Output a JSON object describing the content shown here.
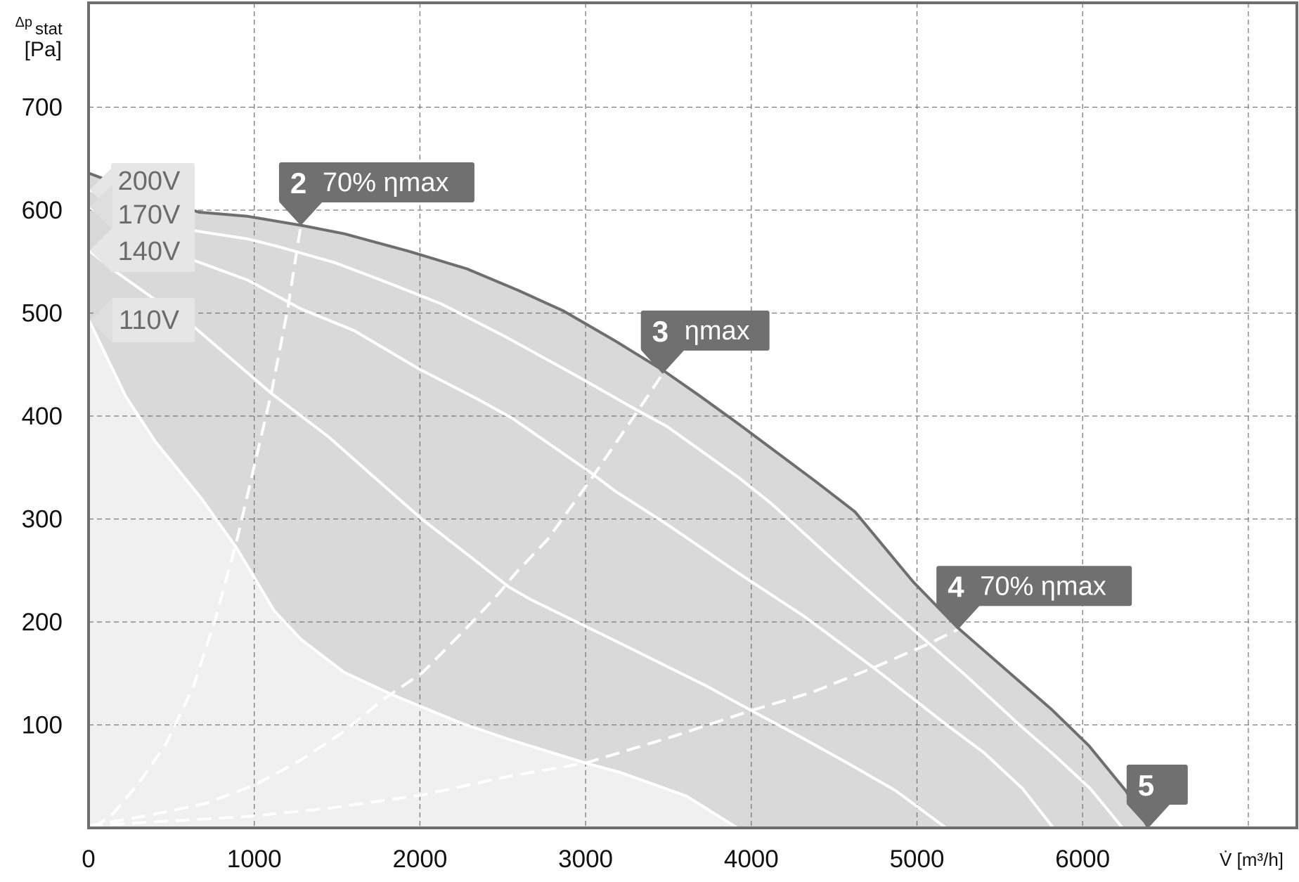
{
  "chart_data": {
    "type": "line",
    "title": "",
    "xlabel": "V̇ [m³/h]",
    "ylabel": {
      "symbol": "Δp",
      "subscript": "stat",
      "unit": "[Pa]"
    },
    "xlim": [
      0,
      7300
    ],
    "ylim": [
      0,
      800
    ],
    "grid": true,
    "x_ticks": [
      0,
      1000,
      2000,
      3000,
      4000,
      5000,
      6000
    ],
    "x_tick_labels": [
      "0",
      "1000",
      "2000",
      "3000",
      "4000",
      "5000",
      "6000"
    ],
    "y_ticks": [
      100,
      200,
      300,
      400,
      500,
      600,
      700
    ],
    "y_tick_labels": [
      "100",
      "200",
      "300",
      "400",
      "500",
      "600",
      "700"
    ],
    "colors": {
      "envelope": "#6e6e6e",
      "operating_area": "#d9d9d9",
      "low_area": "#f0f0f0",
      "curves": "#ffffff",
      "callout": "#707070",
      "voltage_tag": "#e6e6e6"
    },
    "envelope": [
      [
        0,
        636
      ],
      [
        165,
        626
      ],
      [
        665,
        598
      ],
      [
        961,
        594
      ],
      [
        1292,
        585
      ],
      [
        1545,
        577
      ],
      [
        1934,
        560
      ],
      [
        2284,
        543
      ],
      [
        2595,
        522
      ],
      [
        2868,
        502
      ],
      [
        3179,
        473
      ],
      [
        3471,
        444
      ],
      [
        3685,
        420
      ],
      [
        3926,
        392
      ],
      [
        4393,
        336
      ],
      [
        4626,
        307
      ],
      [
        4977,
        239
      ],
      [
        5249,
        194
      ],
      [
        5813,
        115
      ],
      [
        6037,
        80
      ],
      [
        6261,
        36
      ],
      [
        6397,
        0
      ]
    ],
    "series": [
      {
        "name": "200V",
        "points": [
          [
            0,
            620
          ],
          [
            640,
            580
          ],
          [
            961,
            572
          ],
          [
            1136,
            565
          ],
          [
            1486,
            549
          ],
          [
            1798,
            530
          ],
          [
            2128,
            509
          ],
          [
            2517,
            477
          ],
          [
            2946,
            439
          ],
          [
            3296,
            407
          ],
          [
            3490,
            390
          ],
          [
            3926,
            340
          ],
          [
            4121,
            315
          ],
          [
            4510,
            258
          ],
          [
            4938,
            198
          ],
          [
            5288,
            149
          ],
          [
            5619,
            100
          ],
          [
            5813,
            73
          ],
          [
            6047,
            38
          ],
          [
            6241,
            0
          ]
        ]
      },
      {
        "name": "170V",
        "points": [
          [
            0,
            603
          ],
          [
            640,
            551
          ],
          [
            961,
            532
          ],
          [
            1283,
            504
          ],
          [
            1603,
            483
          ],
          [
            1992,
            446
          ],
          [
            2342,
            417
          ],
          [
            2556,
            398
          ],
          [
            3023,
            346
          ],
          [
            3179,
            327
          ],
          [
            3490,
            295
          ],
          [
            3926,
            247
          ],
          [
            4315,
            206
          ],
          [
            4743,
            155
          ],
          [
            5171,
            101
          ],
          [
            5405,
            73
          ],
          [
            5638,
            38
          ],
          [
            5823,
            0
          ]
        ]
      },
      {
        "name": "140V",
        "points": [
          [
            0,
            561
          ],
          [
            175,
            539
          ],
          [
            648,
            485
          ],
          [
            1104,
            422
          ],
          [
            1447,
            380
          ],
          [
            1700,
            344
          ],
          [
            2011,
            300
          ],
          [
            2323,
            261
          ],
          [
            2537,
            234
          ],
          [
            2667,
            222
          ],
          [
            3251,
            176
          ],
          [
            3727,
            138
          ],
          [
            4000,
            114
          ],
          [
            4267,
            91
          ],
          [
            4570,
            64
          ],
          [
            4873,
            36
          ],
          [
            5175,
            0
          ]
        ]
      },
      {
        "name": "110V",
        "points": [
          [
            0,
            494
          ],
          [
            225,
            419
          ],
          [
            404,
            375
          ],
          [
            681,
            320
          ],
          [
            893,
            272
          ],
          [
            1120,
            211
          ],
          [
            1283,
            183
          ],
          [
            1544,
            151
          ],
          [
            1837,
            129
          ],
          [
            2261,
            101
          ],
          [
            2537,
            86
          ],
          [
            3000,
            63
          ],
          [
            3208,
            54
          ],
          [
            3608,
            31
          ],
          [
            3915,
            0
          ]
        ]
      }
    ],
    "voltage_labels": [
      {
        "text": "200V",
        "pressure": 620
      },
      {
        "text": "170V",
        "pressure": 603
      },
      {
        "text": "140V",
        "pressure": 561
      },
      {
        "text": "110V",
        "pressure": 493
      }
    ],
    "system_lines": [
      {
        "id": "2",
        "points": [
          [
            30,
            0
          ],
          [
            143,
            13
          ],
          [
            306,
            44
          ],
          [
            469,
            82
          ],
          [
            632,
            137
          ],
          [
            762,
            201
          ],
          [
            893,
            278
          ],
          [
            1007,
            356
          ],
          [
            1104,
            423
          ],
          [
            1202,
            504
          ],
          [
            1281,
            585
          ]
        ]
      },
      {
        "id": "3",
        "points": [
          [
            0,
            2
          ],
          [
            388,
            13
          ],
          [
            713,
            24
          ],
          [
            1007,
            42
          ],
          [
            1283,
            66
          ],
          [
            1528,
            92
          ],
          [
            1772,
            124
          ],
          [
            2016,
            151
          ],
          [
            2281,
            194
          ],
          [
            2472,
            227
          ],
          [
            2581,
            248
          ],
          [
            2770,
            280
          ],
          [
            3043,
            341
          ],
          [
            3315,
            405
          ],
          [
            3465,
            441
          ]
        ]
      },
      {
        "id": "4",
        "points": [
          [
            0,
            2
          ],
          [
            306,
            5
          ],
          [
            958,
            11
          ],
          [
            1446,
            19
          ],
          [
            2016,
            32
          ],
          [
            2534,
            50
          ],
          [
            3000,
            63
          ],
          [
            3532,
            89
          ],
          [
            4000,
            114
          ],
          [
            4373,
            132
          ],
          [
            4743,
            156
          ],
          [
            5074,
            179
          ],
          [
            5249,
            193
          ]
        ]
      }
    ],
    "callouts": [
      {
        "number": "2",
        "text": "70% ηmax",
        "at": [
          1281,
          585
        ]
      },
      {
        "number": "3",
        "text": "ηmax",
        "at": [
          3465,
          441
        ]
      },
      {
        "number": "4",
        "text": "70% ηmax",
        "at": [
          5249,
          193
        ]
      },
      {
        "number": "5",
        "text": "",
        "at": [
          6397,
          0
        ]
      }
    ]
  }
}
